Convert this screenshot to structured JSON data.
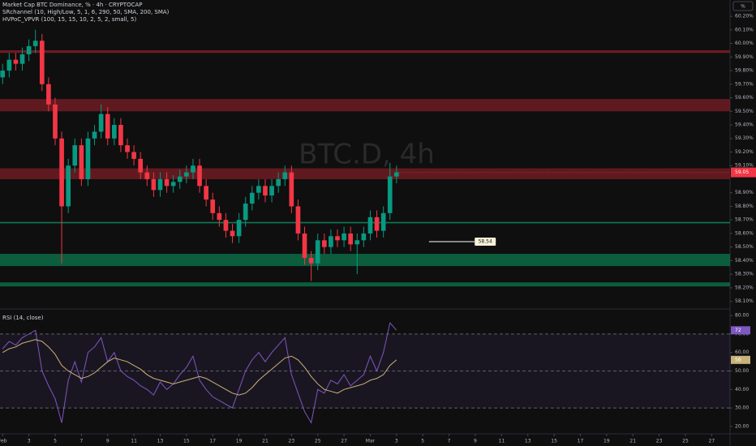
{
  "chart_data": [
    {
      "type": "candlestick",
      "title": "Market Cap BTC Dominance, % · 4h · CRYPTOCAP",
      "indicators": [
        "SRchannel (10, High/Low, 5, 1, 6, 290, 50, SMA, 200, SMA)",
        "HVPoC_VPVR (100, 15, 15, 10, 2, 5, 2, small, 5)"
      ],
      "watermark": "BTC.D, 4h",
      "unit_badge": "%",
      "up_color": "#089981",
      "down_color": "#f23645",
      "x": [
        0,
        0.5,
        1,
        1.5,
        2,
        2.5,
        3,
        3.5,
        4,
        4.5,
        5,
        5.5,
        6,
        6.5,
        7,
        7.5,
        8,
        8.5,
        9,
        9.5,
        10,
        10.5,
        11,
        11.5,
        12,
        12.5,
        13,
        13.5,
        14,
        14.5,
        15,
        15.5,
        16,
        16.5,
        17,
        17.5,
        18,
        18.5,
        19,
        19.5,
        20,
        20.5,
        21,
        21.5,
        22,
        22.5,
        23,
        23.5,
        24,
        24.5,
        25,
        25.5,
        26,
        26.5,
        27,
        27.5,
        28,
        28.5,
        29,
        29.5,
        30
      ],
      "open": [
        59.75,
        59.8,
        59.88,
        59.85,
        59.92,
        59.98,
        60.02,
        59.7,
        59.55,
        59.3,
        58.8,
        59.1,
        59.25,
        59.0,
        59.3,
        59.35,
        59.48,
        59.3,
        59.4,
        59.25,
        59.2,
        59.15,
        59.05,
        59.0,
        58.92,
        59.0,
        58.95,
        58.98,
        59.02,
        59.05,
        59.1,
        58.95,
        58.85,
        58.75,
        58.7,
        58.62,
        58.58,
        58.7,
        58.82,
        58.9,
        58.95,
        58.88,
        58.95,
        59.0,
        59.05,
        58.8,
        58.6,
        58.42,
        58.38,
        58.55,
        58.5,
        58.58,
        58.55,
        58.6,
        58.52,
        58.55,
        58.6,
        58.72,
        58.62,
        58.75,
        59.02
      ],
      "high": [
        59.85,
        59.93,
        59.93,
        59.97,
        60.03,
        60.1,
        60.07,
        59.75,
        59.6,
        59.35,
        59.15,
        59.3,
        59.3,
        59.35,
        59.4,
        59.55,
        59.53,
        59.45,
        59.45,
        59.3,
        59.25,
        59.2,
        59.1,
        59.05,
        59.05,
        59.05,
        59.03,
        59.07,
        59.1,
        59.15,
        59.15,
        59.0,
        58.9,
        58.8,
        58.75,
        58.67,
        58.75,
        58.87,
        58.95,
        59.0,
        59.0,
        59.0,
        59.05,
        59.1,
        59.1,
        58.85,
        58.65,
        58.47,
        58.6,
        58.6,
        58.63,
        58.63,
        58.65,
        58.65,
        58.6,
        58.65,
        58.77,
        58.77,
        58.8,
        59.12,
        59.1
      ],
      "low": [
        59.7,
        59.75,
        59.8,
        59.8,
        59.87,
        59.93,
        59.65,
        59.5,
        59.25,
        58.38,
        58.75,
        59.05,
        58.95,
        58.95,
        59.25,
        59.3,
        59.25,
        59.25,
        59.2,
        59.15,
        59.1,
        59.0,
        58.95,
        58.87,
        58.87,
        58.9,
        58.9,
        58.93,
        58.97,
        59.0,
        58.9,
        58.8,
        58.7,
        58.65,
        58.57,
        58.53,
        58.53,
        58.65,
        58.77,
        58.85,
        58.83,
        58.83,
        58.9,
        58.95,
        58.75,
        58.55,
        58.37,
        58.25,
        58.33,
        58.45,
        58.45,
        58.5,
        58.5,
        58.47,
        58.3,
        58.5,
        58.55,
        58.57,
        58.57,
        58.7,
        58.97
      ],
      "close": [
        59.8,
        59.88,
        59.85,
        59.92,
        59.98,
        60.02,
        59.7,
        59.55,
        59.3,
        58.8,
        59.1,
        59.25,
        59.0,
        59.3,
        59.35,
        59.48,
        59.3,
        59.4,
        59.25,
        59.2,
        59.15,
        59.05,
        59.0,
        58.92,
        59.0,
        58.95,
        58.98,
        59.02,
        59.05,
        59.1,
        58.95,
        58.85,
        58.75,
        58.7,
        58.62,
        58.58,
        58.7,
        58.82,
        58.9,
        58.95,
        58.88,
        58.95,
        59.0,
        59.05,
        58.8,
        58.6,
        58.42,
        58.38,
        58.55,
        58.5,
        58.58,
        58.55,
        58.6,
        58.52,
        58.55,
        58.6,
        58.72,
        58.62,
        58.75,
        59.02,
        59.05
      ],
      "xlim": [
        -0.2,
        55.4
      ],
      "xticks": [
        {
          "value": 0,
          "label": "Feb"
        },
        {
          "value": 2,
          "label": "3"
        },
        {
          "value": 4,
          "label": "5"
        },
        {
          "value": 6,
          "label": "7"
        },
        {
          "value": 8,
          "label": "9"
        },
        {
          "value": 10,
          "label": "11"
        },
        {
          "value": 12,
          "label": "13"
        },
        {
          "value": 14,
          "label": "15"
        },
        {
          "value": 16,
          "label": "17"
        },
        {
          "value": 18,
          "label": "19"
        },
        {
          "value": 20,
          "label": "21"
        },
        {
          "value": 22,
          "label": "23"
        },
        {
          "value": 24,
          "label": "25"
        },
        {
          "value": 26,
          "label": "27"
        },
        {
          "value": 28,
          "label": "Mar"
        },
        {
          "value": 30,
          "label": "3"
        },
        {
          "value": 32,
          "label": "5"
        },
        {
          "value": 34,
          "label": "7"
        },
        {
          "value": 36,
          "label": "9"
        },
        {
          "value": 38,
          "label": "11"
        },
        {
          "value": 40,
          "label": "13"
        },
        {
          "value": 42,
          "label": "15"
        },
        {
          "value": 44,
          "label": "17"
        },
        {
          "value": 46,
          "label": "19"
        },
        {
          "value": 48,
          "label": "21"
        },
        {
          "value": 50,
          "label": "23"
        },
        {
          "value": 52,
          "label": "25"
        },
        {
          "value": 54,
          "label": "27"
        }
      ],
      "ylim": [
        58.05,
        60.32
      ],
      "yticks": [
        {
          "value": 60.2,
          "label": "60.20%"
        },
        {
          "value": 60.1,
          "label": "60.10%"
        },
        {
          "value": 60.0,
          "label": "60.00%"
        },
        {
          "value": 59.9,
          "label": "59.90%"
        },
        {
          "value": 59.8,
          "label": "59.80%"
        },
        {
          "value": 59.7,
          "label": "59.70%"
        },
        {
          "value": 59.6,
          "label": "59.60%"
        },
        {
          "value": 59.5,
          "label": "59.50%"
        },
        {
          "value": 59.4,
          "label": "59.40%"
        },
        {
          "value": 59.3,
          "label": "59.30%"
        },
        {
          "value": 59.2,
          "label": "59.20%"
        },
        {
          "value": 59.1,
          "label": "59.10%"
        },
        {
          "value": 58.9,
          "label": "58.90%"
        },
        {
          "value": 58.8,
          "label": "58.80%"
        },
        {
          "value": 58.7,
          "label": "58.70%"
        },
        {
          "value": 58.6,
          "label": "58.60%"
        },
        {
          "value": 58.5,
          "label": "58.50%"
        },
        {
          "value": 58.4,
          "label": "58.40%"
        },
        {
          "value": 58.3,
          "label": "58.30%"
        },
        {
          "value": 58.2,
          "label": "58.20%"
        },
        {
          "value": 58.1,
          "label": "58.10%"
        }
      ],
      "zones": [
        {
          "low": 59.93,
          "high": 59.95,
          "color": "#7a1f26"
        },
        {
          "low": 59.5,
          "high": 59.59,
          "color": "#6e1c22"
        },
        {
          "low": 59.0,
          "high": 59.08,
          "color": "#6e1c22"
        },
        {
          "low": 58.675,
          "high": 58.685,
          "color": "#0f8a5f"
        },
        {
          "low": 58.36,
          "high": 58.45,
          "color": "#0b6b45"
        },
        {
          "low": 58.21,
          "high": 58.24,
          "color": "#0b6b45"
        }
      ],
      "annotations": [
        {
          "x": 36.2,
          "y": 58.54,
          "text": "58.54"
        }
      ]
    },
    {
      "type": "line",
      "title": "RSI (14, close)",
      "series": [
        {
          "color": "#7e57c2",
          "values": [
            62,
            66,
            64,
            68,
            70,
            72,
            50,
            42,
            35,
            22,
            45,
            55,
            44,
            60,
            63,
            68,
            55,
            60,
            50,
            47,
            45,
            42,
            40,
            37,
            44,
            40,
            43,
            48,
            52,
            58,
            45,
            40,
            36,
            34,
            32,
            30,
            40,
            50,
            56,
            60,
            55,
            60,
            64,
            68,
            48,
            38,
            28,
            22,
            40,
            38,
            45,
            43,
            48,
            42,
            45,
            48,
            58,
            50,
            60,
            76,
            72
          ]
        },
        {
          "color": "#c9b27a",
          "values": [
            60,
            62,
            63,
            65,
            66,
            67,
            66,
            63,
            59,
            53,
            50,
            48,
            46,
            47,
            49,
            52,
            55,
            57,
            56,
            55,
            53,
            51,
            48,
            46,
            45,
            44,
            43,
            44,
            45,
            46,
            47,
            46,
            44,
            42,
            40,
            38,
            37,
            38,
            41,
            45,
            48,
            51,
            54,
            57,
            58,
            56,
            52,
            47,
            43,
            40,
            39,
            38,
            40,
            41,
            42,
            43,
            45,
            46,
            48,
            53,
            56
          ]
        }
      ],
      "ylim": [
        18.2,
        83.1
      ],
      "yticks": [
        {
          "value": 80,
          "label": "80.00"
        },
        {
          "value": 70,
          "label": "70.00"
        },
        {
          "value": 60,
          "label": "60.00"
        },
        {
          "value": 50,
          "label": "50.00"
        },
        {
          "value": 40,
          "label": "40.00"
        },
        {
          "value": 30,
          "label": "30.00"
        },
        {
          "value": 20,
          "label": "20.00"
        }
      ],
      "levels": [
        70,
        50,
        30
      ]
    }
  ]
}
